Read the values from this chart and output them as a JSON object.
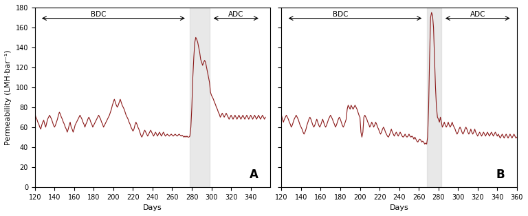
{
  "line_color": "#8B1A1A",
  "shade_color": "#D3D3D3",
  "shade_alpha": 0.5,
  "background_color": "#FFFFFF",
  "ylabel": "Permeability (LMH·bar⁻¹)",
  "xlabel": "Days",
  "xlim_A": [
    120,
    360
  ],
  "xlim_B": [
    120,
    360
  ],
  "ylim": [
    0,
    180
  ],
  "yticks": [
    0,
    20,
    40,
    60,
    80,
    100,
    120,
    140,
    160,
    180
  ],
  "xticks_A": [
    120,
    140,
    160,
    180,
    200,
    220,
    240,
    260,
    280,
    300,
    320,
    340
  ],
  "xticks_B": [
    120,
    140,
    160,
    180,
    200,
    220,
    240,
    260,
    280,
    300,
    320,
    340,
    360
  ],
  "shade_A": [
    278,
    298
  ],
  "shade_B": [
    268,
    283
  ],
  "BDC_arrow_A": [
    125,
    275
  ],
  "ADC_arrow_A": [
    300,
    350
  ],
  "BDC_arrow_B": [
    125,
    265
  ],
  "ADC_arrow_B": [
    285,
    355
  ],
  "label_A": "A",
  "label_B": "B",
  "panel_A_data": [
    [
      120,
      74
    ],
    [
      121,
      70
    ],
    [
      122,
      68
    ],
    [
      123,
      65
    ],
    [
      124,
      63
    ],
    [
      125,
      60
    ],
    [
      126,
      58
    ],
    [
      127,
      62
    ],
    [
      128,
      65
    ],
    [
      129,
      67
    ],
    [
      130,
      63
    ],
    [
      131,
      60
    ],
    [
      132,
      64
    ],
    [
      133,
      68
    ],
    [
      134,
      70
    ],
    [
      135,
      72
    ],
    [
      136,
      70
    ],
    [
      137,
      68
    ],
    [
      138,
      65
    ],
    [
      139,
      62
    ],
    [
      140,
      60
    ],
    [
      141,
      62
    ],
    [
      142,
      65
    ],
    [
      143,
      68
    ],
    [
      144,
      72
    ],
    [
      145,
      75
    ],
    [
      146,
      73
    ],
    [
      147,
      70
    ],
    [
      148,
      68
    ],
    [
      149,
      65
    ],
    [
      150,
      63
    ],
    [
      151,
      60
    ],
    [
      152,
      58
    ],
    [
      153,
      55
    ],
    [
      154,
      58
    ],
    [
      155,
      62
    ],
    [
      156,
      65
    ],
    [
      157,
      60
    ],
    [
      158,
      58
    ],
    [
      159,
      55
    ],
    [
      160,
      58
    ],
    [
      161,
      62
    ],
    [
      162,
      64
    ],
    [
      163,
      66
    ],
    [
      164,
      68
    ],
    [
      165,
      70
    ],
    [
      166,
      72
    ],
    [
      167,
      70
    ],
    [
      168,
      68
    ],
    [
      169,
      65
    ],
    [
      170,
      63
    ],
    [
      171,
      60
    ],
    [
      172,
      63
    ],
    [
      173,
      65
    ],
    [
      174,
      68
    ],
    [
      175,
      70
    ],
    [
      176,
      68
    ],
    [
      177,
      65
    ],
    [
      178,
      63
    ],
    [
      179,
      60
    ],
    [
      180,
      62
    ],
    [
      181,
      64
    ],
    [
      182,
      66
    ],
    [
      183,
      68
    ],
    [
      184,
      70
    ],
    [
      185,
      72
    ],
    [
      186,
      70
    ],
    [
      187,
      68
    ],
    [
      188,
      65
    ],
    [
      189,
      63
    ],
    [
      190,
      60
    ],
    [
      191,
      62
    ],
    [
      192,
      64
    ],
    [
      193,
      66
    ],
    [
      194,
      68
    ],
    [
      195,
      70
    ],
    [
      196,
      72
    ],
    [
      197,
      75
    ],
    [
      198,
      78
    ],
    [
      199,
      82
    ],
    [
      200,
      85
    ],
    [
      201,
      88
    ],
    [
      202,
      85
    ],
    [
      203,
      82
    ],
    [
      204,
      80
    ],
    [
      205,
      82
    ],
    [
      206,
      85
    ],
    [
      207,
      88
    ],
    [
      208,
      85
    ],
    [
      209,
      82
    ],
    [
      210,
      80
    ],
    [
      211,
      78
    ],
    [
      212,
      75
    ],
    [
      213,
      72
    ],
    [
      214,
      70
    ],
    [
      215,
      68
    ],
    [
      216,
      65
    ],
    [
      217,
      63
    ],
    [
      218,
      60
    ],
    [
      219,
      58
    ],
    [
      220,
      56
    ],
    [
      221,
      58
    ],
    [
      222,
      62
    ],
    [
      223,
      65
    ],
    [
      224,
      63
    ],
    [
      225,
      60
    ],
    [
      226,
      58
    ],
    [
      227,
      55
    ],
    [
      228,
      52
    ],
    [
      229,
      50
    ],
    [
      230,
      52
    ],
    [
      231,
      55
    ],
    [
      232,
      57
    ],
    [
      233,
      55
    ],
    [
      234,
      53
    ],
    [
      235,
      51
    ],
    [
      236,
      53
    ],
    [
      237,
      55
    ],
    [
      238,
      57
    ],
    [
      239,
      55
    ],
    [
      240,
      53
    ],
    [
      241,
      51
    ],
    [
      242,
      53
    ],
    [
      243,
      55
    ],
    [
      244,
      53
    ],
    [
      245,
      51
    ],
    [
      246,
      53
    ],
    [
      247,
      55
    ],
    [
      248,
      53
    ],
    [
      249,
      51
    ],
    [
      250,
      53
    ],
    [
      251,
      55
    ],
    [
      252,
      53
    ],
    [
      253,
      51
    ],
    [
      254,
      52
    ],
    [
      255,
      53
    ],
    [
      256,
      52
    ],
    [
      257,
      51
    ],
    [
      258,
      52
    ],
    [
      259,
      53
    ],
    [
      260,
      52
    ],
    [
      261,
      51
    ],
    [
      262,
      52
    ],
    [
      263,
      53
    ],
    [
      264,
      52
    ],
    [
      265,
      51
    ],
    [
      266,
      52
    ],
    [
      267,
      53
    ],
    [
      268,
      52
    ],
    [
      269,
      51
    ],
    [
      270,
      52
    ],
    [
      271,
      51
    ],
    [
      272,
      50
    ],
    [
      273,
      51
    ],
    [
      274,
      50
    ],
    [
      275,
      51
    ],
    [
      276,
      50
    ],
    [
      277,
      50
    ],
    [
      278,
      51
    ],
    [
      279,
      60
    ],
    [
      280,
      80
    ],
    [
      281,
      110
    ],
    [
      282,
      130
    ],
    [
      283,
      145
    ],
    [
      284,
      150
    ],
    [
      285,
      148
    ],
    [
      286,
      145
    ],
    [
      287,
      140
    ],
    [
      288,
      135
    ],
    [
      289,
      128
    ],
    [
      290,
      125
    ],
    [
      291,
      122
    ],
    [
      292,
      125
    ],
    [
      293,
      127
    ],
    [
      294,
      125
    ],
    [
      295,
      120
    ],
    [
      296,
      115
    ],
    [
      297,
      110
    ],
    [
      298,
      105
    ],
    [
      299,
      95
    ],
    [
      300,
      92
    ],
    [
      301,
      90
    ],
    [
      302,
      88
    ],
    [
      303,
      85
    ],
    [
      304,
      83
    ],
    [
      305,
      80
    ],
    [
      306,
      78
    ],
    [
      307,
      75
    ],
    [
      308,
      73
    ],
    [
      309,
      70
    ],
    [
      310,
      72
    ],
    [
      311,
      74
    ],
    [
      312,
      72
    ],
    [
      313,
      70
    ],
    [
      314,
      72
    ],
    [
      315,
      74
    ],
    [
      316,
      72
    ],
    [
      317,
      70
    ],
    [
      318,
      68
    ],
    [
      319,
      70
    ],
    [
      320,
      72
    ],
    [
      321,
      70
    ],
    [
      322,
      68
    ],
    [
      323,
      70
    ],
    [
      324,
      72
    ],
    [
      325,
      70
    ],
    [
      326,
      68
    ],
    [
      327,
      70
    ],
    [
      328,
      72
    ],
    [
      329,
      70
    ],
    [
      330,
      68
    ],
    [
      331,
      70
    ],
    [
      332,
      72
    ],
    [
      333,
      70
    ],
    [
      334,
      68
    ],
    [
      335,
      70
    ],
    [
      336,
      72
    ],
    [
      337,
      70
    ],
    [
      338,
      68
    ],
    [
      339,
      70
    ],
    [
      340,
      72
    ],
    [
      341,
      70
    ],
    [
      342,
      68
    ],
    [
      343,
      70
    ],
    [
      344,
      72
    ],
    [
      345,
      70
    ],
    [
      346,
      68
    ],
    [
      347,
      70
    ],
    [
      348,
      72
    ],
    [
      349,
      70
    ],
    [
      350,
      68
    ],
    [
      351,
      70
    ],
    [
      352,
      72
    ],
    [
      353,
      70
    ],
    [
      354,
      68
    ],
    [
      355,
      70
    ]
  ],
  "panel_B_data": [
    [
      120,
      72
    ],
    [
      121,
      68
    ],
    [
      122,
      65
    ],
    [
      123,
      68
    ],
    [
      124,
      70
    ],
    [
      125,
      72
    ],
    [
      126,
      70
    ],
    [
      127,
      68
    ],
    [
      128,
      65
    ],
    [
      129,
      63
    ],
    [
      130,
      60
    ],
    [
      131,
      62
    ],
    [
      132,
      65
    ],
    [
      133,
      68
    ],
    [
      134,
      70
    ],
    [
      135,
      72
    ],
    [
      136,
      70
    ],
    [
      137,
      68
    ],
    [
      138,
      65
    ],
    [
      139,
      62
    ],
    [
      140,
      60
    ],
    [
      141,
      58
    ],
    [
      142,
      55
    ],
    [
      143,
      53
    ],
    [
      144,
      55
    ],
    [
      145,
      58
    ],
    [
      146,
      62
    ],
    [
      147,
      65
    ],
    [
      148,
      68
    ],
    [
      149,
      70
    ],
    [
      150,
      68
    ],
    [
      151,
      65
    ],
    [
      152,
      62
    ],
    [
      153,
      60
    ],
    [
      154,
      62
    ],
    [
      155,
      65
    ],
    [
      156,
      68
    ],
    [
      157,
      65
    ],
    [
      158,
      62
    ],
    [
      159,
      60
    ],
    [
      160,
      62
    ],
    [
      161,
      65
    ],
    [
      162,
      68
    ],
    [
      163,
      65
    ],
    [
      164,
      62
    ],
    [
      165,
      60
    ],
    [
      166,
      62
    ],
    [
      167,
      65
    ],
    [
      168,
      68
    ],
    [
      169,
      70
    ],
    [
      170,
      72
    ],
    [
      171,
      70
    ],
    [
      172,
      68
    ],
    [
      173,
      65
    ],
    [
      174,
      63
    ],
    [
      175,
      60
    ],
    [
      176,
      62
    ],
    [
      177,
      65
    ],
    [
      178,
      68
    ],
    [
      179,
      70
    ],
    [
      180,
      68
    ],
    [
      181,
      65
    ],
    [
      182,
      62
    ],
    [
      183,
      60
    ],
    [
      184,
      62
    ],
    [
      185,
      65
    ],
    [
      186,
      68
    ],
    [
      187,
      78
    ],
    [
      188,
      82
    ],
    [
      189,
      80
    ],
    [
      190,
      78
    ],
    [
      191,
      82
    ],
    [
      192,
      80
    ],
    [
      193,
      78
    ],
    [
      194,
      80
    ],
    [
      195,
      82
    ],
    [
      196,
      80
    ],
    [
      197,
      78
    ],
    [
      198,
      75
    ],
    [
      199,
      72
    ],
    [
      200,
      70
    ],
    [
      201,
      55
    ],
    [
      202,
      50
    ],
    [
      203,
      55
    ],
    [
      204,
      70
    ],
    [
      205,
      72
    ],
    [
      206,
      70
    ],
    [
      207,
      68
    ],
    [
      208,
      65
    ],
    [
      209,
      63
    ],
    [
      210,
      60
    ],
    [
      211,
      62
    ],
    [
      212,
      65
    ],
    [
      213,
      63
    ],
    [
      214,
      60
    ],
    [
      215,
      62
    ],
    [
      216,
      65
    ],
    [
      217,
      63
    ],
    [
      218,
      60
    ],
    [
      219,
      58
    ],
    [
      220,
      55
    ],
    [
      221,
      53
    ],
    [
      222,
      55
    ],
    [
      223,
      58
    ],
    [
      224,
      60
    ],
    [
      225,
      58
    ],
    [
      226,
      55
    ],
    [
      227,
      53
    ],
    [
      228,
      51
    ],
    [
      229,
      50
    ],
    [
      230,
      52
    ],
    [
      231,
      55
    ],
    [
      232,
      58
    ],
    [
      233,
      55
    ],
    [
      234,
      53
    ],
    [
      235,
      51
    ],
    [
      236,
      53
    ],
    [
      237,
      55
    ],
    [
      238,
      53
    ],
    [
      239,
      51
    ],
    [
      240,
      53
    ],
    [
      241,
      55
    ],
    [
      242,
      53
    ],
    [
      243,
      51
    ],
    [
      244,
      50
    ],
    [
      245,
      51
    ],
    [
      246,
      53
    ],
    [
      247,
      51
    ],
    [
      248,
      50
    ],
    [
      249,
      51
    ],
    [
      250,
      53
    ],
    [
      251,
      51
    ],
    [
      252,
      50
    ],
    [
      253,
      51
    ],
    [
      254,
      50
    ],
    [
      255,
      48
    ],
    [
      256,
      50
    ],
    [
      257,
      48
    ],
    [
      258,
      46
    ],
    [
      259,
      45
    ],
    [
      260,
      47
    ],
    [
      261,
      48
    ],
    [
      262,
      47
    ],
    [
      263,
      45
    ],
    [
      264,
      46
    ],
    [
      265,
      45
    ],
    [
      266,
      43
    ],
    [
      267,
      44
    ],
    [
      268,
      43
    ],
    [
      269,
      50
    ],
    [
      270,
      80
    ],
    [
      271,
      130
    ],
    [
      272,
      170
    ],
    [
      273,
      175
    ],
    [
      274,
      172
    ],
    [
      275,
      160
    ],
    [
      276,
      130
    ],
    [
      277,
      100
    ],
    [
      278,
      80
    ],
    [
      279,
      70
    ],
    [
      280,
      68
    ],
    [
      281,
      65
    ],
    [
      282,
      70
    ],
    [
      283,
      65
    ],
    [
      284,
      60
    ],
    [
      285,
      62
    ],
    [
      286,
      65
    ],
    [
      287,
      62
    ],
    [
      288,
      60
    ],
    [
      289,
      62
    ],
    [
      290,
      65
    ],
    [
      291,
      62
    ],
    [
      292,
      60
    ],
    [
      293,
      62
    ],
    [
      294,
      65
    ],
    [
      295,
      62
    ],
    [
      296,
      60
    ],
    [
      297,
      58
    ],
    [
      298,
      55
    ],
    [
      299,
      53
    ],
    [
      300,
      55
    ],
    [
      301,
      58
    ],
    [
      302,
      60
    ],
    [
      303,
      58
    ],
    [
      304,
      55
    ],
    [
      305,
      53
    ],
    [
      306,
      55
    ],
    [
      307,
      58
    ],
    [
      308,
      60
    ],
    [
      309,
      58
    ],
    [
      310,
      55
    ],
    [
      311,
      53
    ],
    [
      312,
      55
    ],
    [
      313,
      58
    ],
    [
      314,
      55
    ],
    [
      315,
      53
    ],
    [
      316,
      55
    ],
    [
      317,
      58
    ],
    [
      318,
      55
    ],
    [
      319,
      53
    ],
    [
      320,
      51
    ],
    [
      321,
      53
    ],
    [
      322,
      55
    ],
    [
      323,
      53
    ],
    [
      324,
      51
    ],
    [
      325,
      53
    ],
    [
      326,
      55
    ],
    [
      327,
      53
    ],
    [
      328,
      51
    ],
    [
      329,
      53
    ],
    [
      330,
      55
    ],
    [
      331,
      53
    ],
    [
      332,
      51
    ],
    [
      333,
      53
    ],
    [
      334,
      55
    ],
    [
      335,
      53
    ],
    [
      336,
      51
    ],
    [
      337,
      53
    ],
    [
      338,
      55
    ],
    [
      339,
      53
    ],
    [
      340,
      51
    ],
    [
      341,
      53
    ],
    [
      342,
      51
    ],
    [
      343,
      49
    ],
    [
      344,
      51
    ],
    [
      345,
      53
    ],
    [
      346,
      51
    ],
    [
      347,
      49
    ],
    [
      348,
      51
    ],
    [
      349,
      53
    ],
    [
      350,
      51
    ],
    [
      351,
      49
    ],
    [
      352,
      51
    ],
    [
      353,
      53
    ],
    [
      354,
      51
    ],
    [
      355,
      49
    ],
    [
      356,
      51
    ],
    [
      357,
      53
    ],
    [
      358,
      51
    ],
    [
      359,
      49
    ],
    [
      360,
      50
    ]
  ]
}
